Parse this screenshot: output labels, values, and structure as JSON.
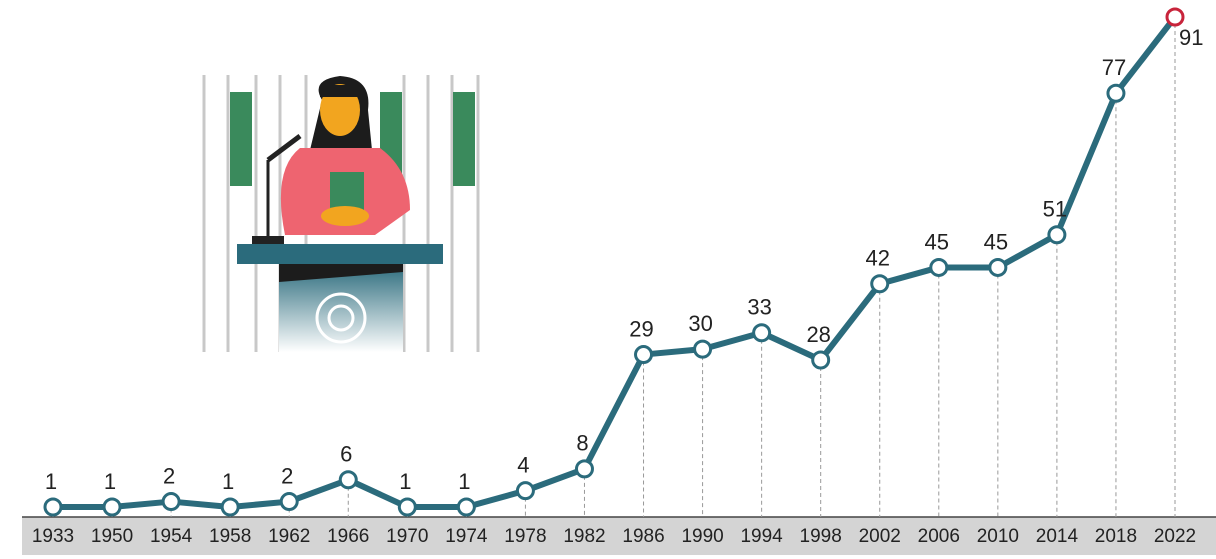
{
  "chart_data": {
    "type": "line",
    "categories": [
      "1933",
      "1950",
      "1954",
      "1958",
      "1962",
      "1966",
      "1970",
      "1974",
      "1978",
      "1982",
      "1986",
      "1990",
      "1994",
      "1998",
      "2002",
      "2006",
      "2010",
      "2014",
      "2018",
      "2022"
    ],
    "values": [
      1,
      1,
      2,
      1,
      2,
      6,
      1,
      1,
      4,
      8,
      29,
      30,
      33,
      28,
      42,
      45,
      45,
      51,
      77,
      91
    ],
    "color": "#2b6b7c",
    "highlight_color": "#c8243b"
  }
}
